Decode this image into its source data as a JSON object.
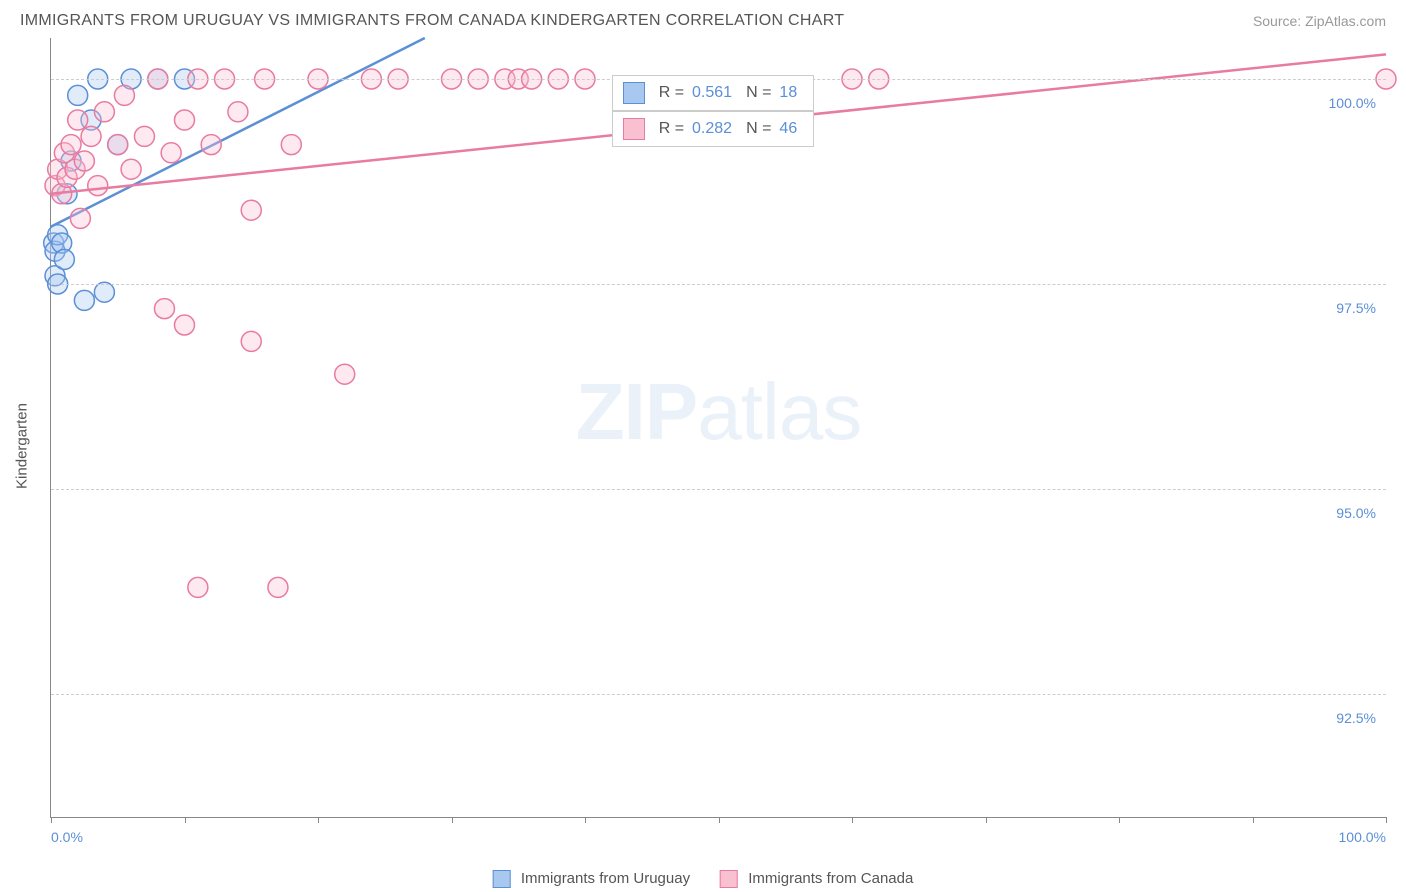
{
  "header": {
    "title": "IMMIGRANTS FROM URUGUAY VS IMMIGRANTS FROM CANADA KINDERGARTEN CORRELATION CHART",
    "source": "Source: ZipAtlas.com"
  },
  "watermark": {
    "zip": "ZIP",
    "atlas": "atlas"
  },
  "chart": {
    "type": "scatter",
    "ylabel": "Kindergarten",
    "xlim": [
      0,
      100
    ],
    "ylim": [
      91.0,
      100.5
    ],
    "x_ticks": [
      0,
      10,
      20,
      30,
      40,
      50,
      60,
      70,
      80,
      90,
      100
    ],
    "x_tick_labels": {
      "min": "0.0%",
      "max": "100.0%"
    },
    "y_ticks": [
      92.5,
      95.0,
      97.5,
      100.0
    ],
    "y_tick_labels": [
      "92.5%",
      "95.0%",
      "97.5%",
      "100.0%"
    ],
    "background_color": "#ffffff",
    "grid_color": "#cccccc",
    "axis_color": "#888888",
    "text_color": "#555555",
    "value_color": "#5b8fd6",
    "marker_radius": 10,
    "marker_opacity": 0.35,
    "line_width": 2.5,
    "series": [
      {
        "id": "uruguay",
        "label": "Immigrants from Uruguay",
        "color_fill": "#a8c8f0",
        "color_stroke": "#5b8fd6",
        "r_value": "0.561",
        "n_value": "18",
        "trend": {
          "x1": 0,
          "y1": 98.2,
          "x2": 28,
          "y2": 100.5
        },
        "points": [
          [
            0.2,
            98.0
          ],
          [
            0.3,
            97.6
          ],
          [
            0.3,
            97.9
          ],
          [
            0.5,
            97.5
          ],
          [
            0.5,
            98.1
          ],
          [
            0.8,
            98.0
          ],
          [
            1.0,
            97.8
          ],
          [
            1.2,
            98.6
          ],
          [
            1.5,
            99.0
          ],
          [
            2.0,
            99.8
          ],
          [
            2.5,
            97.3
          ],
          [
            3.0,
            99.5
          ],
          [
            3.5,
            100.0
          ],
          [
            4.0,
            97.4
          ],
          [
            5.0,
            99.2
          ],
          [
            6.0,
            100.0
          ],
          [
            8.0,
            100.0
          ],
          [
            10.0,
            100.0
          ]
        ]
      },
      {
        "id": "canada",
        "label": "Immigrants from Canada",
        "color_fill": "#f8c0d0",
        "color_stroke": "#e87ba0",
        "r_value": "0.282",
        "n_value": "46",
        "trend": {
          "x1": 0,
          "y1": 98.6,
          "x2": 100,
          "y2": 100.3
        },
        "points": [
          [
            0.3,
            98.7
          ],
          [
            0.5,
            98.9
          ],
          [
            0.8,
            98.6
          ],
          [
            1.0,
            99.1
          ],
          [
            1.2,
            98.8
          ],
          [
            1.5,
            99.2
          ],
          [
            1.8,
            98.9
          ],
          [
            2.0,
            99.5
          ],
          [
            2.2,
            98.3
          ],
          [
            2.5,
            99.0
          ],
          [
            3.0,
            99.3
          ],
          [
            3.5,
            98.7
          ],
          [
            4.0,
            99.6
          ],
          [
            5.0,
            99.2
          ],
          [
            5.5,
            99.8
          ],
          [
            6.0,
            98.9
          ],
          [
            7.0,
            99.3
          ],
          [
            8.0,
            100.0
          ],
          [
            9.0,
            99.1
          ],
          [
            10.0,
            99.5
          ],
          [
            11.0,
            100.0
          ],
          [
            12.0,
            99.2
          ],
          [
            13.0,
            100.0
          ],
          [
            14.0,
            99.6
          ],
          [
            15.0,
            98.4
          ],
          [
            16.0,
            100.0
          ],
          [
            18.0,
            99.2
          ],
          [
            20.0,
            100.0
          ],
          [
            22.0,
            96.4
          ],
          [
            24.0,
            100.0
          ],
          [
            26.0,
            100.0
          ],
          [
            30.0,
            100.0
          ],
          [
            32.0,
            100.0
          ],
          [
            34.0,
            100.0
          ],
          [
            35.0,
            100.0
          ],
          [
            36.0,
            100.0
          ],
          [
            38.0,
            100.0
          ],
          [
            40.0,
            100.0
          ],
          [
            8.5,
            97.2
          ],
          [
            10.0,
            97.0
          ],
          [
            15.0,
            96.8
          ],
          [
            11.0,
            93.8
          ],
          [
            17.0,
            93.8
          ],
          [
            60.0,
            100.0
          ],
          [
            62.0,
            100.0
          ],
          [
            100.0,
            100.0
          ]
        ]
      }
    ],
    "legend_stats": [
      {
        "series": "uruguay",
        "r_label": "R =",
        "n_label": "N ="
      },
      {
        "series": "canada",
        "r_label": "R =",
        "n_label": "N ="
      }
    ]
  }
}
